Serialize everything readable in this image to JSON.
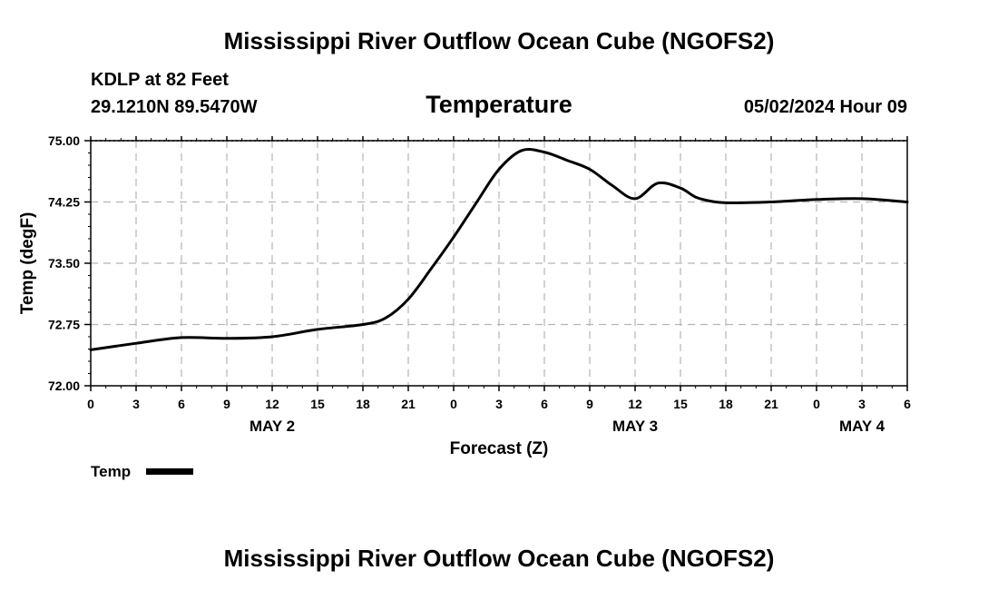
{
  "header": {
    "title": "Mississippi River Outflow Ocean Cube (NGOFS2)",
    "station": "KDLP at 82 Feet",
    "coordinates": "29.1210N  89.5470W",
    "variable": "Temperature",
    "datetime": "05/02/2024 Hour 09"
  },
  "footer": {
    "title": "Mississippi River Outflow Ocean Cube (NGOFS2)"
  },
  "chart_data": {
    "type": "line",
    "title": "Temperature",
    "xlabel": "Forecast (Z)",
    "ylabel": "Temp (degF)",
    "xlim": [
      0,
      54
    ],
    "ylim": [
      72.0,
      75.0
    ],
    "yticks": [
      "72.00",
      "72.75",
      "73.50",
      "74.25",
      "75.00"
    ],
    "xticks": [
      "0",
      "3",
      "6",
      "9",
      "12",
      "15",
      "18",
      "21",
      "0",
      "3",
      "6",
      "9",
      "12",
      "15",
      "18",
      "21",
      "0",
      "3",
      "6"
    ],
    "day_labels": [
      {
        "text": "MAY 2",
        "x": 12
      },
      {
        "text": "MAY 3",
        "x": 36
      },
      {
        "text": "MAY 4",
        "x": 51
      }
    ],
    "grid": true,
    "legend": {
      "position": "bottom-left",
      "label": "Temp"
    },
    "series": [
      {
        "name": "Temp",
        "color": "#000000",
        "x": [
          0,
          3,
          6,
          9,
          12,
          15,
          18,
          19.5,
          21,
          22.5,
          24,
          25.5,
          27,
          28.5,
          30,
          31.5,
          33,
          34.5,
          36,
          37.5,
          39,
          40,
          41,
          42,
          43,
          45,
          48,
          51,
          54
        ],
        "y": [
          72.44,
          72.52,
          72.59,
          72.58,
          72.6,
          72.69,
          72.75,
          72.83,
          73.06,
          73.43,
          73.82,
          74.24,
          74.65,
          74.88,
          74.86,
          74.76,
          74.65,
          74.45,
          74.29,
          74.48,
          74.42,
          74.31,
          74.26,
          74.24,
          74.24,
          74.25,
          74.28,
          74.29,
          74.25
        ]
      }
    ]
  }
}
